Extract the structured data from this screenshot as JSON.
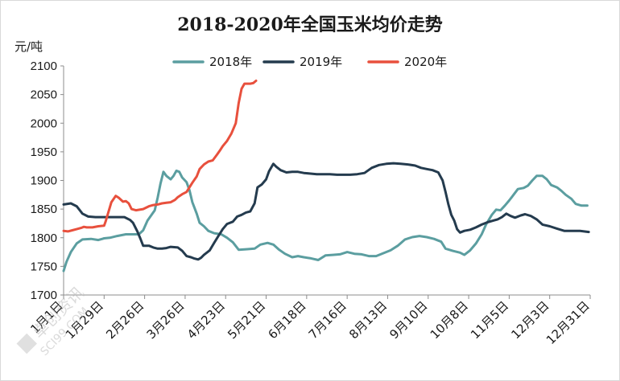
{
  "chart_data": {
    "type": "line",
    "title": "2018-2020年全国玉米均价走势",
    "ylabel": "元/吨",
    "xlabel": "",
    "ylim": [
      1700,
      2100
    ],
    "yticks": [
      "1700",
      "1750",
      "1800",
      "1850",
      "1900",
      "1950",
      "2000",
      "2050",
      "2100"
    ],
    "xticks": [
      "1月1日",
      "1月29日",
      "2月26日",
      "3月26日",
      "4月23日",
      "5月21日",
      "6月18日",
      "7月16日",
      "8月13日",
      "9月10日",
      "10月8日",
      "11月5日",
      "12月3日",
      "12月31日"
    ],
    "xticks_day": [
      0,
      28,
      56,
      84,
      112,
      140,
      168,
      196,
      224,
      252,
      280,
      308,
      336,
      364
    ],
    "x_unit": "day of year",
    "legend_position": "top",
    "grid": false,
    "series": [
      {
        "name": "2018年",
        "color": "#5b9ea0",
        "points": [
          [
            0,
            1742
          ],
          [
            2,
            1758
          ],
          [
            5,
            1775
          ],
          [
            9,
            1790
          ],
          [
            13,
            1797
          ],
          [
            19,
            1798
          ],
          [
            24,
            1796
          ],
          [
            28,
            1799
          ],
          [
            32,
            1800
          ],
          [
            37,
            1803
          ],
          [
            43,
            1806
          ],
          [
            52,
            1806
          ],
          [
            55,
            1813
          ],
          [
            58,
            1830
          ],
          [
            63,
            1848
          ],
          [
            65,
            1870
          ],
          [
            67,
            1895
          ],
          [
            69,
            1915
          ],
          [
            71,
            1908
          ],
          [
            74,
            1902
          ],
          [
            76,
            1908
          ],
          [
            78,
            1917
          ],
          [
            80,
            1915
          ],
          [
            82,
            1905
          ],
          [
            85,
            1897
          ],
          [
            87,
            1883
          ],
          [
            89,
            1862
          ],
          [
            92,
            1842
          ],
          [
            94,
            1826
          ],
          [
            97,
            1820
          ],
          [
            100,
            1812
          ],
          [
            104,
            1808
          ],
          [
            109,
            1806
          ],
          [
            113,
            1800
          ],
          [
            117,
            1792
          ],
          [
            121,
            1779
          ],
          [
            127,
            1780
          ],
          [
            132,
            1781
          ],
          [
            136,
            1788
          ],
          [
            141,
            1791
          ],
          [
            145,
            1788
          ],
          [
            149,
            1779
          ],
          [
            153,
            1772
          ],
          [
            158,
            1766
          ],
          [
            162,
            1768
          ],
          [
            166,
            1766
          ],
          [
            171,
            1764
          ],
          [
            176,
            1761
          ],
          [
            181,
            1769
          ],
          [
            186,
            1770
          ],
          [
            191,
            1771
          ],
          [
            196,
            1775
          ],
          [
            201,
            1772
          ],
          [
            206,
            1771
          ],
          [
            211,
            1768
          ],
          [
            216,
            1768
          ],
          [
            221,
            1773
          ],
          [
            226,
            1778
          ],
          [
            231,
            1786
          ],
          [
            236,
            1797
          ],
          [
            241,
            1801
          ],
          [
            246,
            1803
          ],
          [
            251,
            1801
          ],
          [
            256,
            1798
          ],
          [
            261,
            1793
          ],
          [
            264,
            1781
          ],
          [
            269,
            1777
          ],
          [
            274,
            1774
          ],
          [
            277,
            1770
          ],
          [
            281,
            1778
          ],
          [
            285,
            1790
          ],
          [
            289,
            1806
          ],
          [
            292,
            1823
          ],
          [
            296,
            1840
          ],
          [
            299,
            1849
          ],
          [
            302,
            1848
          ],
          [
            305,
            1856
          ],
          [
            308,
            1865
          ],
          [
            311,
            1875
          ],
          [
            314,
            1885
          ],
          [
            318,
            1887
          ],
          [
            321,
            1891
          ],
          [
            324,
            1900
          ],
          [
            327,
            1908
          ],
          [
            331,
            1908
          ],
          [
            334,
            1902
          ],
          [
            337,
            1892
          ],
          [
            341,
            1888
          ],
          [
            344,
            1882
          ],
          [
            347,
            1875
          ],
          [
            351,
            1868
          ],
          [
            354,
            1859
          ],
          [
            358,
            1856
          ],
          [
            362,
            1856
          ]
        ]
      },
      {
        "name": "2019年",
        "color": "#243b4e",
        "points": [
          [
            0,
            1858
          ],
          [
            5,
            1860
          ],
          [
            9,
            1855
          ],
          [
            13,
            1842
          ],
          [
            17,
            1837
          ],
          [
            22,
            1836
          ],
          [
            27,
            1836
          ],
          [
            33,
            1836
          ],
          [
            42,
            1836
          ],
          [
            46,
            1831
          ],
          [
            48,
            1826
          ],
          [
            51,
            1811
          ],
          [
            53,
            1799
          ],
          [
            55,
            1786
          ],
          [
            59,
            1786
          ],
          [
            62,
            1783
          ],
          [
            65,
            1781
          ],
          [
            68,
            1781
          ],
          [
            71,
            1782
          ],
          [
            74,
            1784
          ],
          [
            79,
            1783
          ],
          [
            82,
            1777
          ],
          [
            85,
            1768
          ],
          [
            88,
            1766
          ],
          [
            90,
            1764
          ],
          [
            93,
            1762
          ],
          [
            95,
            1765
          ],
          [
            97,
            1770
          ],
          [
            101,
            1778
          ],
          [
            104,
            1791
          ],
          [
            107,
            1803
          ],
          [
            110,
            1815
          ],
          [
            113,
            1824
          ],
          [
            117,
            1828
          ],
          [
            120,
            1837
          ],
          [
            123,
            1840
          ],
          [
            126,
            1844
          ],
          [
            129,
            1846
          ],
          [
            132,
            1860
          ],
          [
            134,
            1888
          ],
          [
            137,
            1893
          ],
          [
            140,
            1902
          ],
          [
            142,
            1916
          ],
          [
            145,
            1929
          ],
          [
            147,
            1924
          ],
          [
            150,
            1918
          ],
          [
            154,
            1914
          ],
          [
            158,
            1915
          ],
          [
            162,
            1915
          ],
          [
            166,
            1913
          ],
          [
            170,
            1912
          ],
          [
            175,
            1911
          ],
          [
            179,
            1911
          ],
          [
            184,
            1911
          ],
          [
            189,
            1910
          ],
          [
            193,
            1910
          ],
          [
            198,
            1910
          ],
          [
            203,
            1911
          ],
          [
            208,
            1913
          ],
          [
            213,
            1922
          ],
          [
            218,
            1927
          ],
          [
            223,
            1929
          ],
          [
            228,
            1930
          ],
          [
            233,
            1929
          ],
          [
            238,
            1928
          ],
          [
            243,
            1926
          ],
          [
            247,
            1922
          ],
          [
            251,
            1920
          ],
          [
            255,
            1918
          ],
          [
            259,
            1914
          ],
          [
            262,
            1900
          ],
          [
            264,
            1880
          ],
          [
            266,
            1858
          ],
          [
            268,
            1840
          ],
          [
            270,
            1830
          ],
          [
            272,
            1815
          ],
          [
            274,
            1809
          ],
          [
            277,
            1812
          ],
          [
            281,
            1814
          ],
          [
            285,
            1818
          ],
          [
            289,
            1823
          ],
          [
            293,
            1827
          ],
          [
            297,
            1830
          ],
          [
            300,
            1832
          ],
          [
            303,
            1836
          ],
          [
            306,
            1842
          ],
          [
            309,
            1838
          ],
          [
            312,
            1835
          ],
          [
            316,
            1839
          ],
          [
            319,
            1841
          ],
          [
            323,
            1838
          ],
          [
            327,
            1832
          ],
          [
            331,
            1823
          ],
          [
            336,
            1820
          ],
          [
            341,
            1816
          ],
          [
            346,
            1812
          ],
          [
            352,
            1812
          ],
          [
            357,
            1812
          ],
          [
            363,
            1810
          ]
        ]
      },
      {
        "name": "2020年",
        "color": "#e8503d",
        "points": [
          [
            0,
            1812
          ],
          [
            3,
            1811
          ],
          [
            6,
            1813
          ],
          [
            9,
            1815
          ],
          [
            12,
            1817
          ],
          [
            14,
            1819
          ],
          [
            16,
            1818
          ],
          [
            20,
            1818
          ],
          [
            24,
            1820
          ],
          [
            28,
            1821
          ],
          [
            29,
            1828
          ],
          [
            31,
            1845
          ],
          [
            33,
            1862
          ],
          [
            36,
            1873
          ],
          [
            38,
            1870
          ],
          [
            41,
            1863
          ],
          [
            43,
            1864
          ],
          [
            45,
            1860
          ],
          [
            47,
            1850
          ],
          [
            50,
            1848
          ],
          [
            55,
            1850
          ],
          [
            59,
            1855
          ],
          [
            62,
            1857
          ],
          [
            65,
            1858
          ],
          [
            68,
            1860
          ],
          [
            71,
            1861
          ],
          [
            74,
            1862
          ],
          [
            77,
            1866
          ],
          [
            79,
            1871
          ],
          [
            82,
            1876
          ],
          [
            85,
            1880
          ],
          [
            87,
            1888
          ],
          [
            89,
            1896
          ],
          [
            92,
            1907
          ],
          [
            94,
            1920
          ],
          [
            97,
            1928
          ],
          [
            100,
            1933
          ],
          [
            103,
            1935
          ],
          [
            106,
            1945
          ],
          [
            108,
            1952
          ],
          [
            110,
            1960
          ],
          [
            113,
            1969
          ],
          [
            116,
            1982
          ],
          [
            119,
            2000
          ],
          [
            121,
            2035
          ],
          [
            123,
            2060
          ],
          [
            125,
            2069
          ],
          [
            129,
            2069
          ],
          [
            131,
            2070
          ],
          [
            133,
            2074
          ]
        ]
      }
    ]
  },
  "watermark": {
    "line1": "卓创资讯",
    "line2": "SCI99.COM"
  }
}
